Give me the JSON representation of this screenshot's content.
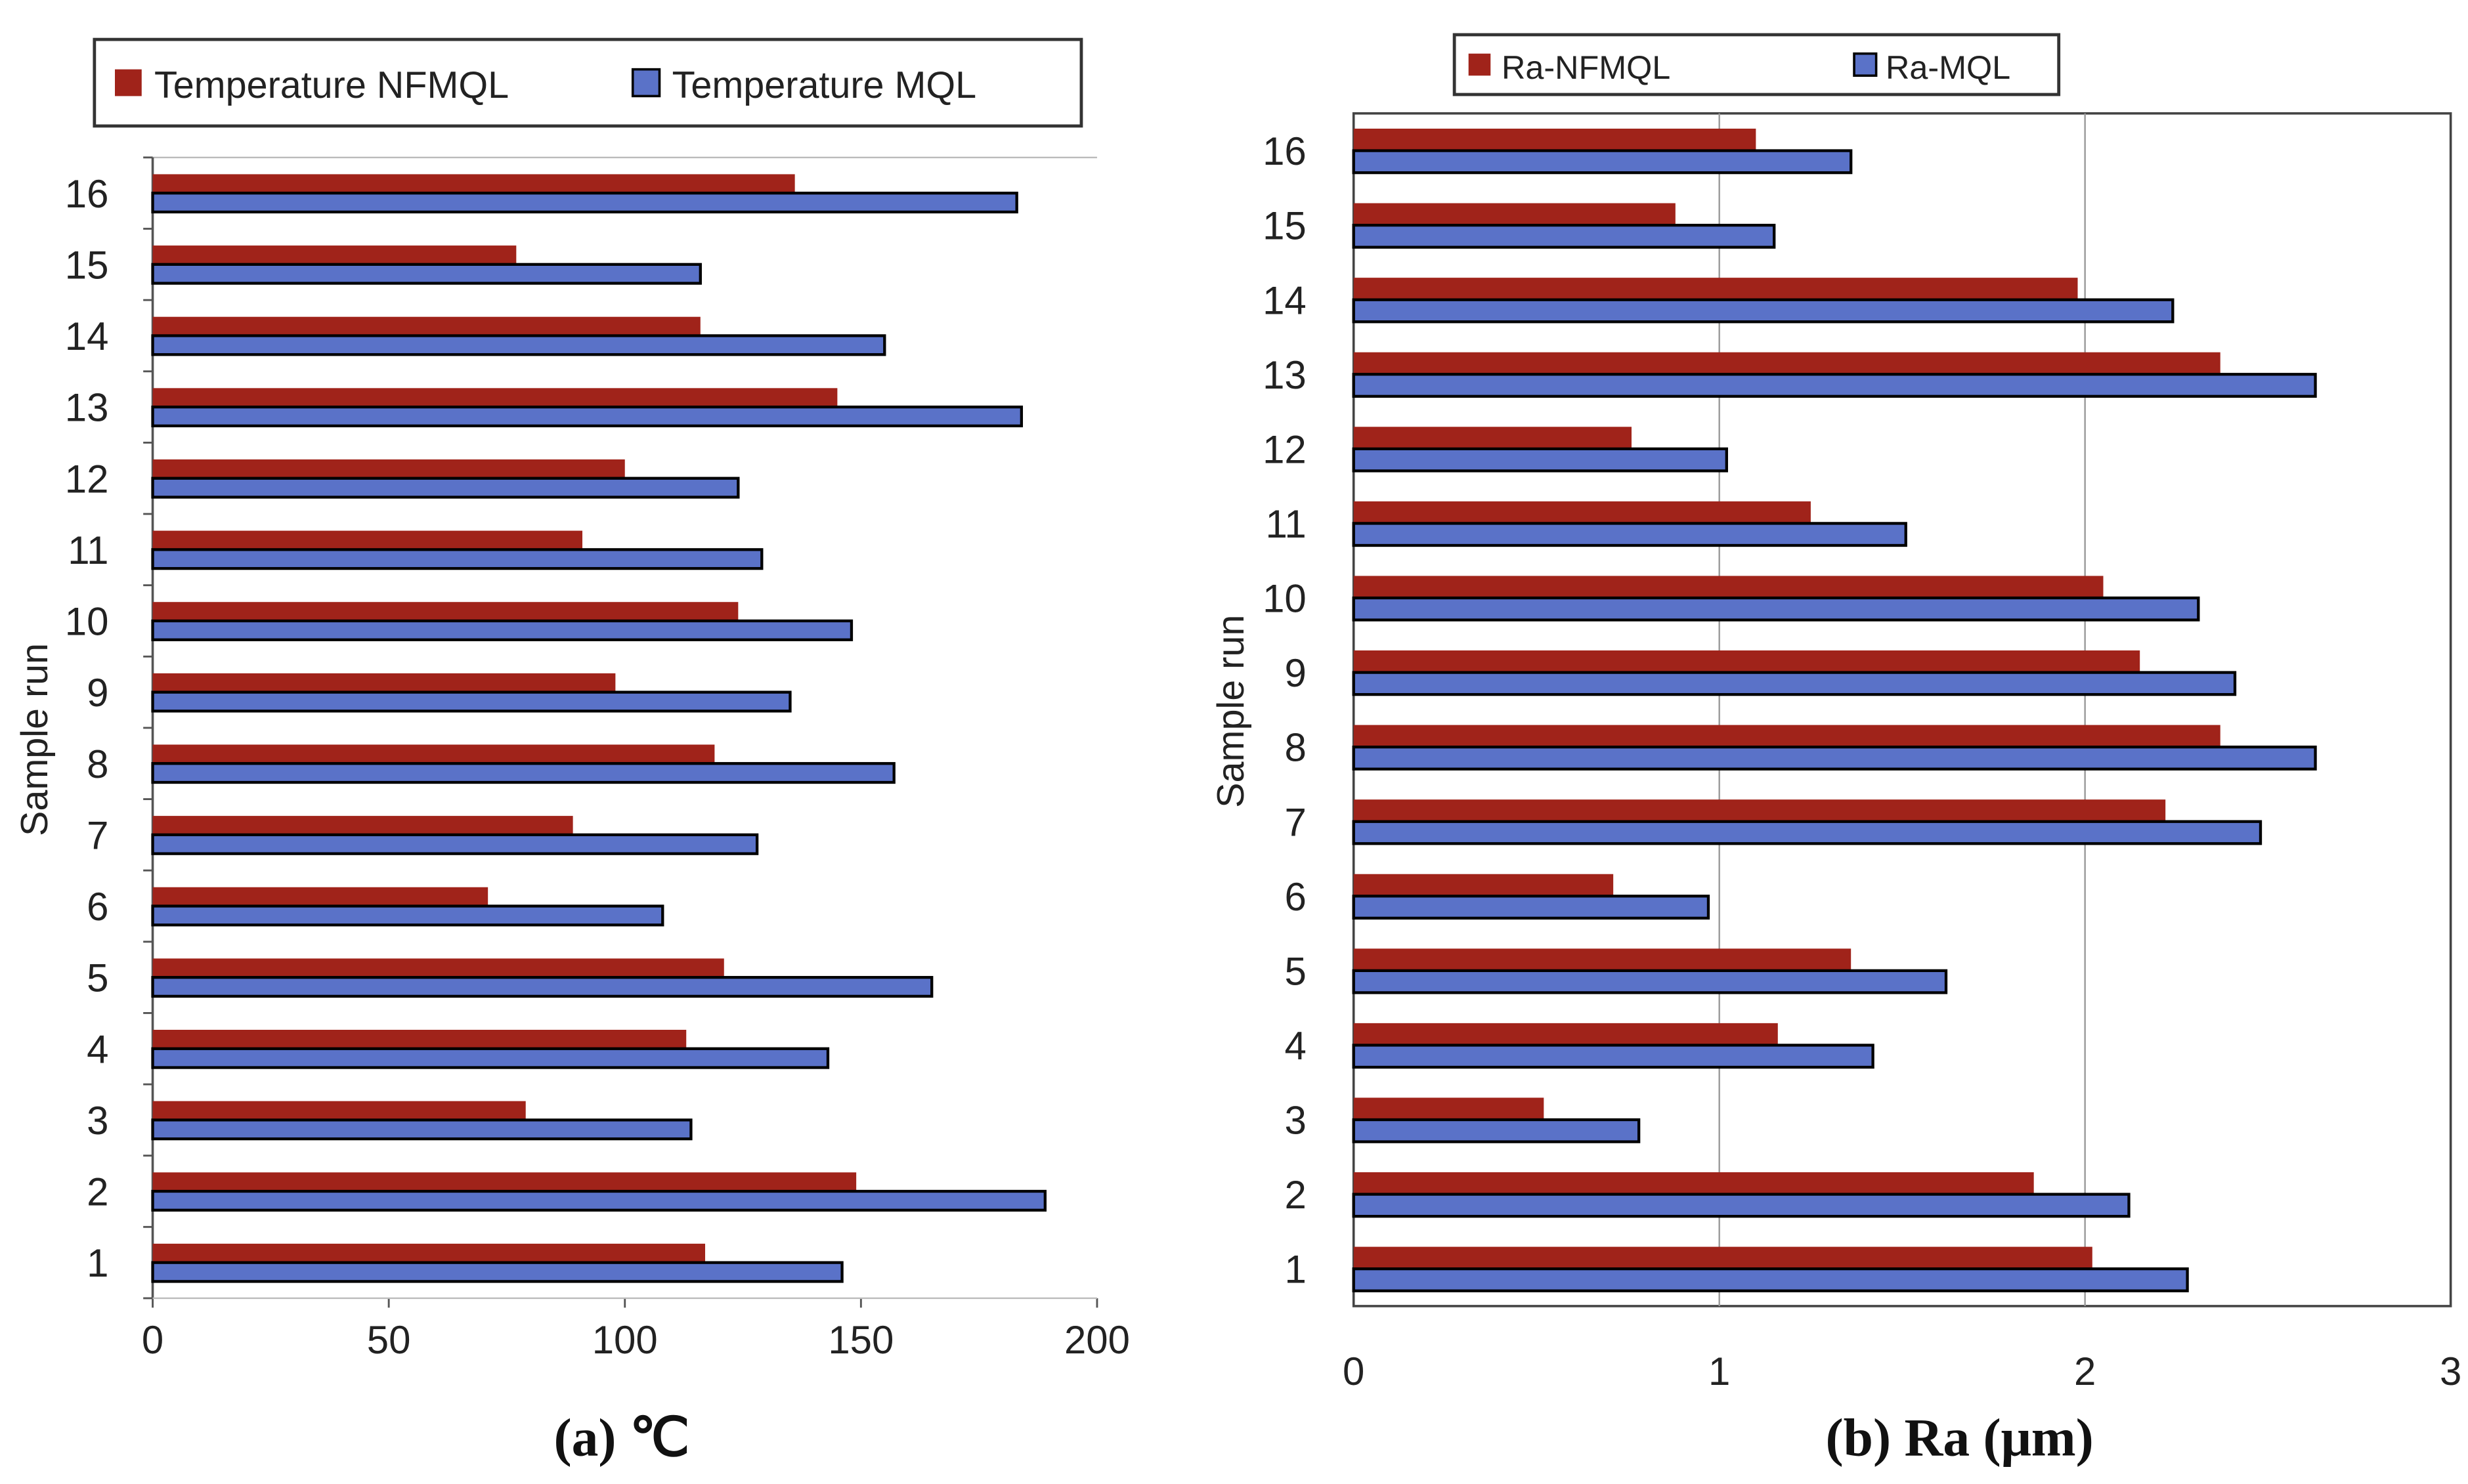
{
  "colors": {
    "nfmql": "#a0231a",
    "mql": "#5a72c8"
  },
  "chart_data": [
    {
      "type": "bar",
      "orientation": "horizontal",
      "caption": "(a) ℃",
      "ylabel": "Sample run",
      "xlabel": "",
      "categories": [
        "1",
        "2",
        "3",
        "4",
        "5",
        "6",
        "7",
        "8",
        "9",
        "10",
        "11",
        "12",
        "13",
        "14",
        "15",
        "16"
      ],
      "xlim": [
        0,
        200
      ],
      "xticks": [
        "0",
        "50",
        "100",
        "150",
        "200"
      ],
      "grid": false,
      "legend_position": "top",
      "series": [
        {
          "name": "Temperature NFMQL",
          "values": [
            117,
            149,
            79,
            113,
            121,
            71,
            89,
            119,
            98,
            124,
            91,
            100,
            145,
            116,
            77,
            136
          ]
        },
        {
          "name": "Temperature MQL",
          "values": [
            146,
            189,
            114,
            143,
            165,
            108,
            128,
            157,
            135,
            148,
            129,
            124,
            184,
            155,
            116,
            183
          ]
        }
      ]
    },
    {
      "type": "bar",
      "orientation": "horizontal",
      "caption": "(b) Ra (μm)",
      "ylabel": "Sample run",
      "xlabel": "",
      "categories": [
        "1",
        "2",
        "3",
        "4",
        "5",
        "6",
        "7",
        "8",
        "9",
        "10",
        "11",
        "12",
        "13",
        "14",
        "15",
        "16"
      ],
      "xlim": [
        0,
        3
      ],
      "xticks": [
        "0",
        "1",
        "2",
        "3"
      ],
      "grid": true,
      "legend_position": "top",
      "series": [
        {
          "name": "Ra-NFMQL",
          "values": [
            2.02,
            1.86,
            0.52,
            1.16,
            1.36,
            0.71,
            2.22,
            2.37,
            2.15,
            2.05,
            1.25,
            0.76,
            2.37,
            1.98,
            0.88,
            1.1
          ]
        },
        {
          "name": "Ra-MQL",
          "values": [
            2.28,
            2.12,
            0.78,
            1.42,
            1.62,
            0.97,
            2.48,
            2.63,
            2.41,
            2.31,
            1.51,
            1.02,
            2.63,
            2.24,
            1.15,
            1.36
          ]
        }
      ]
    }
  ]
}
